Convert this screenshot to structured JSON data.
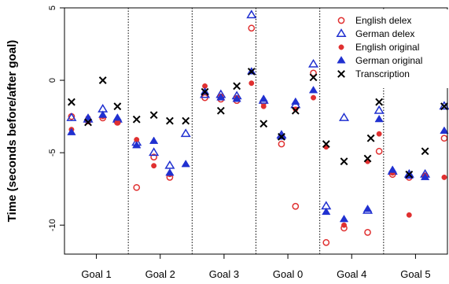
{
  "chart_data": {
    "type": "scatter",
    "ylabel": "Time (seconds before/after goal)",
    "categories": [
      "Goal 1",
      "Goal 2",
      "Goal 3",
      "Goal 0",
      "Goal 4",
      "Goal 5"
    ],
    "y_ticks": [
      5,
      0,
      -5,
      -10
    ],
    "ylim": [
      -12,
      5
    ],
    "grid": false,
    "separators": "dotted vertical lines between categories",
    "legend_position": "top-right",
    "series": [
      {
        "name": "English delex",
        "marker": "open-circle",
        "color": "#e03030",
        "points": [
          {
            "cat": 0,
            "offset": -0.39,
            "y": -2.5
          },
          {
            "cat": 0,
            "offset": -0.13,
            "y": -2.8
          },
          {
            "cat": 0,
            "offset": 0.1,
            "y": -2.6
          },
          {
            "cat": 0,
            "offset": 0.33,
            "y": -2.9
          },
          {
            "cat": 1,
            "offset": -0.37,
            "y": -7.4
          },
          {
            "cat": 1,
            "offset": -0.1,
            "y": -5.3
          },
          {
            "cat": 1,
            "offset": 0.15,
            "y": -6.7
          },
          {
            "cat": 2,
            "offset": -0.3,
            "y": -1.2
          },
          {
            "cat": 2,
            "offset": -0.05,
            "y": -1.3
          },
          {
            "cat": 2,
            "offset": 0.2,
            "y": -1.4
          },
          {
            "cat": 2,
            "offset": 0.43,
            "y": 3.6
          },
          {
            "cat": 3,
            "offset": -0.38,
            "y": -1.5
          },
          {
            "cat": 3,
            "offset": -0.1,
            "y": -4.4
          },
          {
            "cat": 3,
            "offset": 0.12,
            "y": -8.7
          },
          {
            "cat": 3,
            "offset": 0.4,
            "y": 0.5
          },
          {
            "cat": 4,
            "offset": -0.4,
            "y": -11.2
          },
          {
            "cat": 4,
            "offset": -0.12,
            "y": -10.2
          },
          {
            "cat": 4,
            "offset": 0.25,
            "y": -10.5
          },
          {
            "cat": 4,
            "offset": 0.43,
            "y": -4.9
          },
          {
            "cat": 5,
            "offset": -0.36,
            "y": -6.5
          },
          {
            "cat": 5,
            "offset": -0.1,
            "y": -6.7
          },
          {
            "cat": 5,
            "offset": 0.15,
            "y": -6.6
          },
          {
            "cat": 5,
            "offset": 0.45,
            "y": -4.0
          }
        ]
      },
      {
        "name": "German delex",
        "marker": "open-triangle",
        "color": "#2030d0",
        "points": [
          {
            "cat": 0,
            "offset": -0.39,
            "y": -2.6
          },
          {
            "cat": 0,
            "offset": -0.13,
            "y": -2.7
          },
          {
            "cat": 0,
            "offset": 0.1,
            "y": -2.0
          },
          {
            "cat": 0,
            "offset": 0.33,
            "y": -2.7
          },
          {
            "cat": 1,
            "offset": -0.37,
            "y": -4.3
          },
          {
            "cat": 1,
            "offset": -0.1,
            "y": -5.0
          },
          {
            "cat": 1,
            "offset": 0.15,
            "y": -5.9
          },
          {
            "cat": 1,
            "offset": 0.4,
            "y": -3.7
          },
          {
            "cat": 2,
            "offset": -0.3,
            "y": -1.0
          },
          {
            "cat": 2,
            "offset": -0.05,
            "y": -1.0
          },
          {
            "cat": 2,
            "offset": 0.2,
            "y": -1.1
          },
          {
            "cat": 2,
            "offset": 0.43,
            "y": 4.5
          },
          {
            "cat": 3,
            "offset": -0.38,
            "y": -1.4
          },
          {
            "cat": 3,
            "offset": -0.1,
            "y": -3.8
          },
          {
            "cat": 3,
            "offset": 0.12,
            "y": -1.7
          },
          {
            "cat": 3,
            "offset": 0.4,
            "y": 1.1
          },
          {
            "cat": 4,
            "offset": -0.4,
            "y": -8.7
          },
          {
            "cat": 4,
            "offset": -0.12,
            "y": -2.6
          },
          {
            "cat": 4,
            "offset": 0.25,
            "y": -9.0
          },
          {
            "cat": 4,
            "offset": 0.43,
            "y": -2.1
          },
          {
            "cat": 5,
            "offset": -0.36,
            "y": -6.3
          },
          {
            "cat": 5,
            "offset": -0.1,
            "y": -6.5
          },
          {
            "cat": 5,
            "offset": 0.15,
            "y": -6.5
          },
          {
            "cat": 5,
            "offset": 0.45,
            "y": -1.8
          }
        ]
      },
      {
        "name": "English original",
        "marker": "filled-circle",
        "color": "#e03030",
        "points": [
          {
            "cat": 0,
            "offset": -0.39,
            "y": -3.4
          },
          {
            "cat": 0,
            "offset": -0.13,
            "y": -2.6
          },
          {
            "cat": 0,
            "offset": 0.1,
            "y": -2.5
          },
          {
            "cat": 0,
            "offset": 0.33,
            "y": -2.9
          },
          {
            "cat": 1,
            "offset": -0.37,
            "y": -4.1
          },
          {
            "cat": 1,
            "offset": -0.1,
            "y": -5.9
          },
          {
            "cat": 1,
            "offset": 0.15,
            "y": -6.5
          },
          {
            "cat": 2,
            "offset": -0.3,
            "y": -0.4
          },
          {
            "cat": 2,
            "offset": -0.05,
            "y": -1.1
          },
          {
            "cat": 2,
            "offset": 0.2,
            "y": -1.2
          },
          {
            "cat": 2,
            "offset": 0.43,
            "y": -0.2
          },
          {
            "cat": 3,
            "offset": -0.38,
            "y": -1.8
          },
          {
            "cat": 3,
            "offset": -0.1,
            "y": -3.9
          },
          {
            "cat": 3,
            "offset": 0.12,
            "y": -2.0
          },
          {
            "cat": 3,
            "offset": 0.4,
            "y": -1.2
          },
          {
            "cat": 4,
            "offset": -0.4,
            "y": -4.6
          },
          {
            "cat": 4,
            "offset": -0.12,
            "y": -10.0
          },
          {
            "cat": 4,
            "offset": 0.25,
            "y": -5.6
          },
          {
            "cat": 4,
            "offset": 0.43,
            "y": -3.7
          },
          {
            "cat": 5,
            "offset": -0.36,
            "y": -6.4
          },
          {
            "cat": 5,
            "offset": -0.1,
            "y": -9.3
          },
          {
            "cat": 5,
            "offset": 0.15,
            "y": -6.6
          },
          {
            "cat": 5,
            "offset": 0.45,
            "y": -6.7
          }
        ]
      },
      {
        "name": "German original",
        "marker": "filled-triangle",
        "color": "#2030d0",
        "points": [
          {
            "cat": 0,
            "offset": -0.39,
            "y": -3.6
          },
          {
            "cat": 0,
            "offset": -0.13,
            "y": -2.6
          },
          {
            "cat": 0,
            "offset": 0.1,
            "y": -2.4
          },
          {
            "cat": 0,
            "offset": 0.33,
            "y": -2.6
          },
          {
            "cat": 1,
            "offset": -0.37,
            "y": -4.5
          },
          {
            "cat": 1,
            "offset": -0.1,
            "y": -4.2
          },
          {
            "cat": 1,
            "offset": 0.15,
            "y": -6.4
          },
          {
            "cat": 1,
            "offset": 0.4,
            "y": -5.8
          },
          {
            "cat": 2,
            "offset": -0.3,
            "y": -0.8
          },
          {
            "cat": 2,
            "offset": -0.05,
            "y": -1.2
          },
          {
            "cat": 2,
            "offset": 0.2,
            "y": -1.3
          },
          {
            "cat": 2,
            "offset": 0.43,
            "y": 0.6
          },
          {
            "cat": 3,
            "offset": -0.38,
            "y": -1.3
          },
          {
            "cat": 3,
            "offset": -0.1,
            "y": -3.9
          },
          {
            "cat": 3,
            "offset": 0.12,
            "y": -1.5
          },
          {
            "cat": 3,
            "offset": 0.4,
            "y": -0.7
          },
          {
            "cat": 4,
            "offset": -0.4,
            "y": -9.1
          },
          {
            "cat": 4,
            "offset": -0.12,
            "y": -9.6
          },
          {
            "cat": 4,
            "offset": 0.25,
            "y": -8.9
          },
          {
            "cat": 4,
            "offset": 0.43,
            "y": -2.7
          },
          {
            "cat": 5,
            "offset": -0.36,
            "y": -6.2
          },
          {
            "cat": 5,
            "offset": -0.1,
            "y": -6.6
          },
          {
            "cat": 5,
            "offset": 0.15,
            "y": -6.7
          },
          {
            "cat": 5,
            "offset": 0.45,
            "y": -3.5
          }
        ]
      },
      {
        "name": "Transcription",
        "marker": "x",
        "color": "#000000",
        "points": [
          {
            "cat": 0,
            "offset": -0.39,
            "y": -1.5
          },
          {
            "cat": 0,
            "offset": -0.13,
            "y": -2.9
          },
          {
            "cat": 0,
            "offset": 0.1,
            "y": 0.0
          },
          {
            "cat": 0,
            "offset": 0.33,
            "y": -1.8
          },
          {
            "cat": 1,
            "offset": -0.37,
            "y": -2.7
          },
          {
            "cat": 1,
            "offset": -0.1,
            "y": -2.4
          },
          {
            "cat": 1,
            "offset": 0.15,
            "y": -2.8
          },
          {
            "cat": 1,
            "offset": 0.4,
            "y": -2.8
          },
          {
            "cat": 2,
            "offset": -0.3,
            "y": -0.8
          },
          {
            "cat": 2,
            "offset": -0.05,
            "y": -2.1
          },
          {
            "cat": 2,
            "offset": 0.2,
            "y": -0.4
          },
          {
            "cat": 2,
            "offset": 0.43,
            "y": 0.6
          },
          {
            "cat": 3,
            "offset": -0.38,
            "y": -3.0
          },
          {
            "cat": 3,
            "offset": -0.1,
            "y": -3.9
          },
          {
            "cat": 3,
            "offset": 0.12,
            "y": -2.1
          },
          {
            "cat": 3,
            "offset": 0.4,
            "y": 0.2
          },
          {
            "cat": 4,
            "offset": -0.4,
            "y": -4.4
          },
          {
            "cat": 4,
            "offset": -0.12,
            "y": -5.6
          },
          {
            "cat": 4,
            "offset": 0.25,
            "y": -5.4
          },
          {
            "cat": 4,
            "offset": 0.43,
            "y": -1.5
          },
          {
            "cat": 5,
            "offset": -0.7,
            "y": -4.0
          },
          {
            "cat": 5,
            "offset": -0.1,
            "y": -6.5
          },
          {
            "cat": 5,
            "offset": 0.15,
            "y": -4.9
          },
          {
            "cat": 5,
            "offset": 0.45,
            "y": -1.8
          }
        ]
      }
    ]
  }
}
